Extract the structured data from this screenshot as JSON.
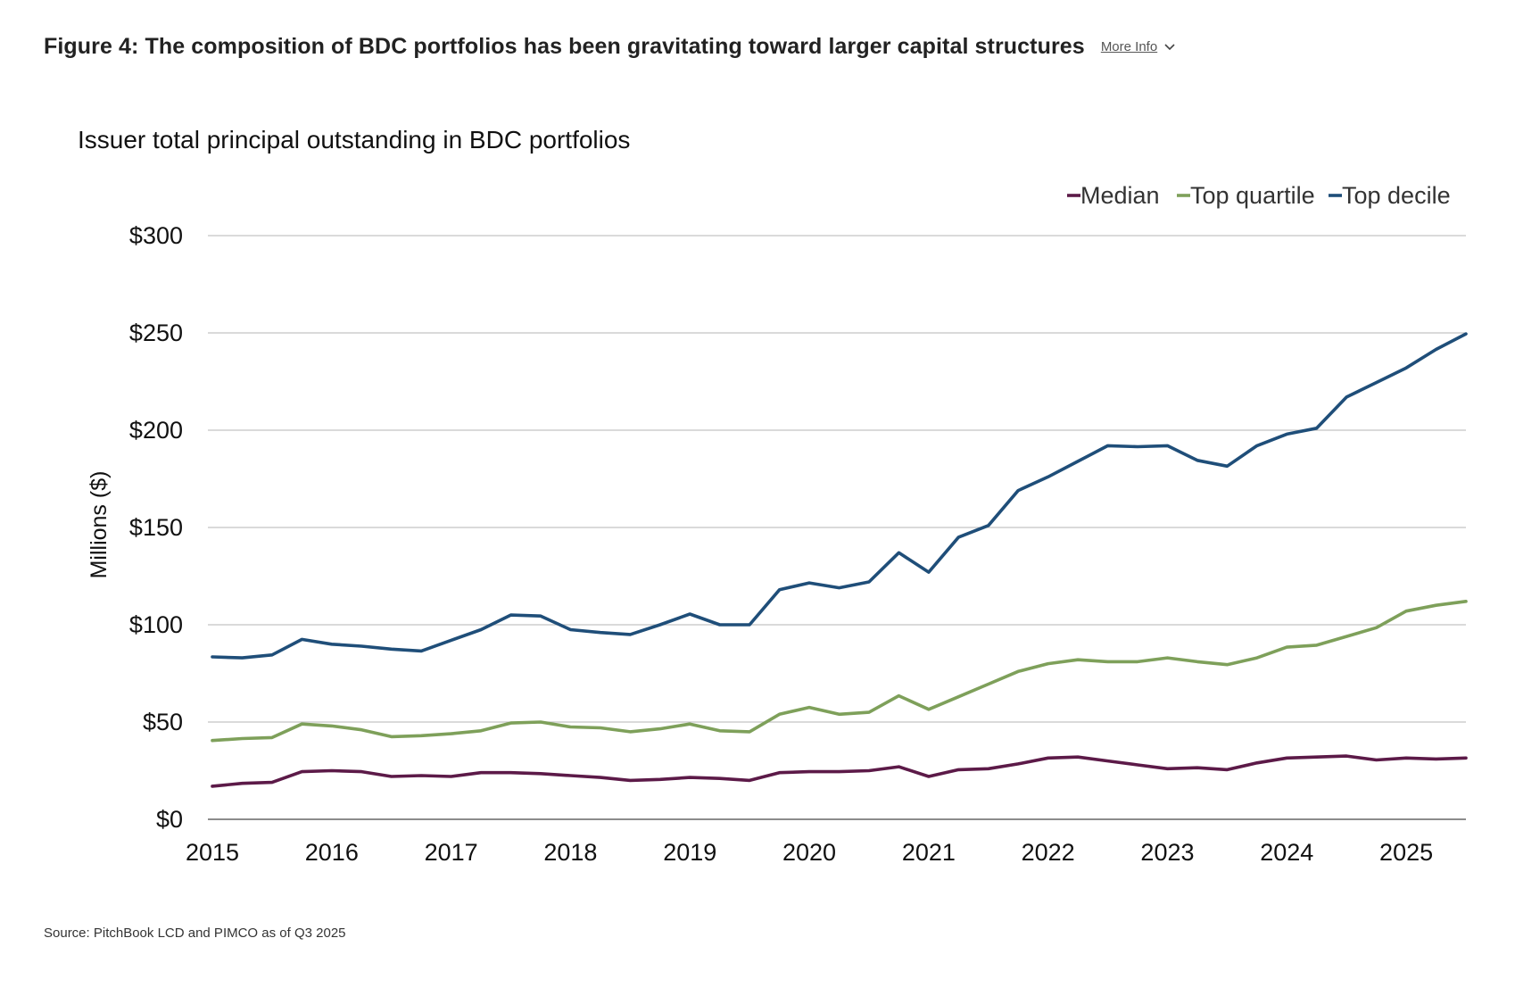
{
  "figure": {
    "title": "Figure 4: The composition of BDC portfolios has been gravitating toward larger capital structures",
    "more_info_label": "More Info",
    "source": "Source: PitchBook LCD and PIMCO as of Q3 2025"
  },
  "chart_data": {
    "type": "line",
    "title": "Issuer total principal outstanding in BDC portfolios",
    "ylabel": "Millions ($)",
    "xlabel": "",
    "xlim": [
      2015,
      2025.5
    ],
    "ylim": [
      0,
      300
    ],
    "yticks": [
      0,
      50,
      100,
      150,
      200,
      250,
      300
    ],
    "ytick_labels": [
      "$0",
      "$50",
      "$100",
      "$150",
      "$200",
      "$250",
      "$300"
    ],
    "xticks": [
      2015,
      2016,
      2017,
      2018,
      2019,
      2020,
      2021,
      2022,
      2023,
      2024,
      2025
    ],
    "xtick_labels": [
      "2015",
      "2016",
      "2017",
      "2018",
      "2019",
      "2020",
      "2021",
      "2022",
      "2023",
      "2024",
      "2025"
    ],
    "grid": true,
    "legend_position": "top-right",
    "x": [
      2015.0,
      2015.25,
      2015.5,
      2015.75,
      2016.0,
      2016.25,
      2016.5,
      2016.75,
      2017.0,
      2017.25,
      2017.5,
      2017.75,
      2018.0,
      2018.25,
      2018.5,
      2018.75,
      2019.0,
      2019.25,
      2019.5,
      2019.75,
      2020.0,
      2020.25,
      2020.5,
      2020.75,
      2021.0,
      2021.25,
      2021.5,
      2021.75,
      2022.0,
      2022.25,
      2022.5,
      2022.75,
      2023.0,
      2023.25,
      2023.5,
      2023.75,
      2024.0,
      2024.25,
      2024.5,
      2024.75,
      2025.0,
      2025.25,
      2025.5
    ],
    "series": [
      {
        "name": "Median",
        "color": "#5c1a48",
        "values": [
          17,
          18.5,
          19,
          24.5,
          25,
          24.5,
          22,
          22.5,
          22,
          24,
          24,
          23.5,
          22.5,
          21.5,
          20,
          20.5,
          21.5,
          21,
          20,
          24,
          24.5,
          24.5,
          25,
          27,
          22,
          25.5,
          26,
          28.5,
          31.5,
          32,
          30,
          28,
          26,
          26.5,
          25.5,
          29,
          31.5,
          32,
          32.5,
          30.5,
          31.5,
          31,
          31.5
        ]
      },
      {
        "name": "Top quartile",
        "color": "#7ea05a",
        "values": [
          40.5,
          41.5,
          42,
          49,
          48,
          46,
          42.5,
          43,
          44,
          45.5,
          49.5,
          50,
          47.5,
          47,
          45,
          46.5,
          49,
          45.5,
          45,
          54,
          57.5,
          54,
          55,
          63.5,
          56.5,
          63,
          69.5,
          76,
          80,
          82,
          81,
          81,
          83,
          81,
          79.5,
          83,
          88.5,
          89.5,
          94,
          98.5,
          107,
          110,
          112
        ]
      },
      {
        "name": "Top decile",
        "color": "#1f4e79",
        "values": [
          83.5,
          83,
          84.5,
          92.5,
          90,
          89,
          87.5,
          86.5,
          92,
          97.5,
          105,
          104.5,
          97.5,
          96,
          95,
          100,
          105.5,
          100,
          100,
          118,
          121.5,
          119,
          122,
          137,
          127,
          145,
          151,
          169,
          176,
          184,
          192,
          191.5,
          192,
          184.5,
          181.5,
          192,
          198,
          201,
          217,
          224.5,
          232,
          241.5,
          249.5
        ]
      }
    ]
  }
}
